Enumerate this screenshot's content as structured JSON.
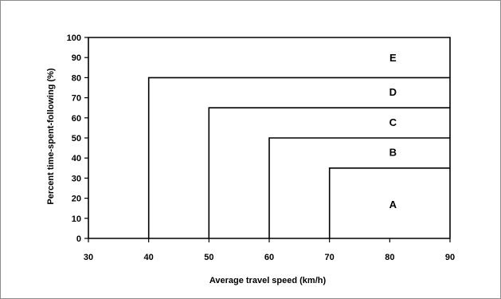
{
  "chart_data": {
    "type": "line",
    "title": "",
    "xlabel": "Average travel speed (km/h)",
    "ylabel": "Percent time-spent-following (%)",
    "xlim": [
      30,
      90
    ],
    "ylim": [
      0,
      100
    ],
    "x_ticks": [
      "30",
      "40",
      "50",
      "60",
      "70",
      "80",
      "90"
    ],
    "y_ticks": [
      "0",
      "10",
      "20",
      "30",
      "40",
      "50",
      "60",
      "70",
      "80",
      "90",
      "100"
    ],
    "grid": false,
    "boundaries": [
      {
        "level": "A",
        "x": [
          70,
          70,
          90
        ],
        "y": [
          0,
          35,
          35
        ]
      },
      {
        "level": "B",
        "x": [
          60,
          60,
          90
        ],
        "y": [
          0,
          50,
          50
        ]
      },
      {
        "level": "C",
        "x": [
          50,
          50,
          90
        ],
        "y": [
          0,
          65,
          65
        ]
      },
      {
        "level": "D",
        "x": [
          40,
          40,
          90
        ],
        "y": [
          0,
          80,
          80
        ]
      },
      {
        "level": "E",
        "x": [
          30,
          30,
          90,
          90
        ],
        "y": [
          0,
          100,
          100,
          0
        ]
      }
    ],
    "region_labels": [
      {
        "text": "A",
        "x": 80,
        "y": 17
      },
      {
        "text": "B",
        "x": 80,
        "y": 43
      },
      {
        "text": "C",
        "x": 80,
        "y": 58
      },
      {
        "text": "D",
        "x": 80,
        "y": 73
      },
      {
        "text": "E",
        "x": 80,
        "y": 90
      }
    ],
    "colors": {
      "line": "#000000",
      "background": "#ffffff"
    }
  }
}
